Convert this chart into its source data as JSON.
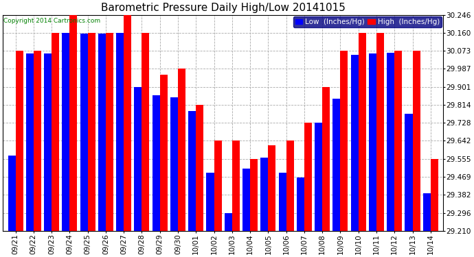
{
  "title": "Barometric Pressure Daily High/Low 20141015",
  "copyright": "Copyright 2014 Cartronics.com",
  "legend_low": "Low  (Inches/Hg)",
  "legend_high": "High  (Inches/Hg)",
  "dates": [
    "09/21",
    "09/22",
    "09/23",
    "09/24",
    "09/25",
    "09/26",
    "09/27",
    "09/28",
    "09/29",
    "09/30",
    "10/01",
    "10/02",
    "10/03",
    "10/04",
    "10/05",
    "10/06",
    "10/07",
    "10/08",
    "10/09",
    "10/10",
    "10/11",
    "10/12",
    "10/13",
    "10/14"
  ],
  "low": [
    29.57,
    30.06,
    30.06,
    30.16,
    30.155,
    30.155,
    30.16,
    29.9,
    29.86,
    29.85,
    29.785,
    29.49,
    29.296,
    29.51,
    29.56,
    29.49,
    29.465,
    29.73,
    29.845,
    30.055,
    30.06,
    30.065,
    29.77,
    29.39
  ],
  "high": [
    30.073,
    30.073,
    30.16,
    30.246,
    30.16,
    30.16,
    30.246,
    30.16,
    29.96,
    29.987,
    29.814,
    29.642,
    29.642,
    29.555,
    29.62,
    29.642,
    29.728,
    29.901,
    30.073,
    30.16,
    30.16,
    30.073,
    30.073,
    29.555
  ],
  "ymin": 29.21,
  "ymax": 30.246,
  "yticks": [
    29.21,
    29.296,
    29.382,
    29.469,
    29.555,
    29.642,
    29.728,
    29.814,
    29.901,
    29.987,
    30.073,
    30.16,
    30.246
  ],
  "bar_color_low": "#0000FF",
  "bar_color_high": "#FF0000",
  "background_color": "#FFFFFF",
  "grid_color": "#AAAAAA",
  "title_fontsize": 11,
  "tick_fontsize": 7.5,
  "legend_fontsize": 7.5,
  "copyright_fontsize": 6.5
}
